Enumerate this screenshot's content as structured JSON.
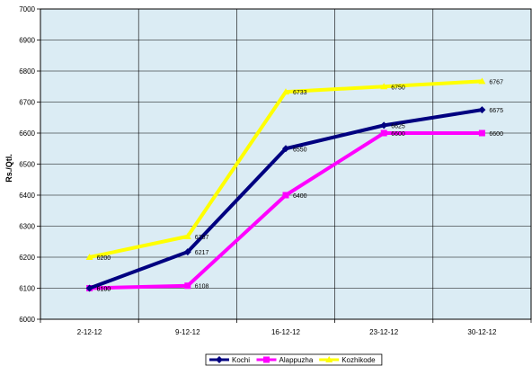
{
  "chart_data": {
    "type": "line",
    "x": [
      "2-12-12",
      "9-12-12",
      "16-12-12",
      "23-12-12",
      "30-12-12"
    ],
    "ylabel": "Rs./Qtl.",
    "ylim": [
      6000,
      7000
    ],
    "yticks": [
      6000,
      6100,
      6200,
      6300,
      6400,
      6500,
      6600,
      6700,
      6800,
      6900,
      7000
    ],
    "grid": true,
    "legend": "bottom",
    "series": [
      {
        "name": "Kochi",
        "values": [
          6100,
          6217,
          6550,
          6625,
          6675
        ],
        "color": "#000080",
        "marker": "diamond"
      },
      {
        "name": "Alappuzha",
        "values": [
          6100,
          6108,
          6400,
          6600,
          6600
        ],
        "color": "#ff00ff",
        "marker": "square"
      },
      {
        "name": "Kozhikode",
        "values": [
          6200,
          6267,
          6733,
          6750,
          6767
        ],
        "color": "#ffff00",
        "marker": "triangle"
      }
    ]
  },
  "colors": {
    "plot_background": "#dbecf4",
    "grid": "#000000"
  }
}
